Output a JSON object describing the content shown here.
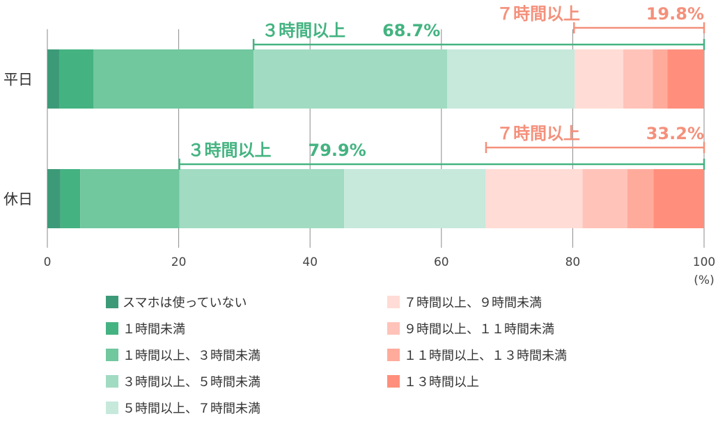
{
  "chart_data": {
    "type": "bar",
    "orientation": "horizontal",
    "stacked": true,
    "categories": [
      "平日",
      "休日"
    ],
    "series": [
      {
        "name": "スマホは使っていない",
        "color": "#3d9a78",
        "values": [
          1.8,
          2.0
        ]
      },
      {
        "name": "１時間未満",
        "color": "#44b381",
        "values": [
          5.2,
          3.0
        ]
      },
      {
        "name": "１時間以上、３時間未満",
        "color": "#71c79e",
        "values": [
          24.4,
          15.1
        ]
      },
      {
        "name": "３時間以上、５時間未満",
        "color": "#a1dbc2",
        "values": [
          29.5,
          25.1
        ]
      },
      {
        "name": "５時間以上、７時間未満",
        "color": "#c6e9dc",
        "values": [
          19.4,
          21.5
        ]
      },
      {
        "name": "７時間以上、９時間未満",
        "color": "#ffdcd5",
        "values": [
          7.4,
          14.8
        ]
      },
      {
        "name": "９時間以上、１１時間未満",
        "color": "#ffc3b9",
        "values": [
          4.5,
          6.8
        ]
      },
      {
        "name": "１１時間以上、１３時間未満",
        "color": "#ffab9c",
        "values": [
          2.2,
          4.0
        ]
      },
      {
        "name": "１３時間以上",
        "color": "#ff8f7c",
        "values": [
          5.6,
          7.7
        ]
      }
    ],
    "xlim": [
      0,
      100
    ],
    "xticks": [
      0,
      20,
      40,
      60,
      80,
      100
    ],
    "unit_label": "(%)",
    "grid": true,
    "legend_position": "bottom",
    "annotations": [
      {
        "category": "平日",
        "label": "３時間以上",
        "value_text": "68.7%",
        "from": 31.4,
        "to": 100,
        "color": "#44b381"
      },
      {
        "category": "平日",
        "label": "７時間以上",
        "value_text": "19.8%",
        "from": 80.2,
        "to": 100,
        "color": "#f4907b"
      },
      {
        "category": "休日",
        "label": "３時間以上",
        "value_text": "79.9%",
        "from": 20.1,
        "to": 100,
        "color": "#44b381"
      },
      {
        "category": "休日",
        "label": "７時間以上",
        "value_text": "33.2%",
        "from": 66.8,
        "to": 100,
        "color": "#f4907b"
      }
    ]
  }
}
